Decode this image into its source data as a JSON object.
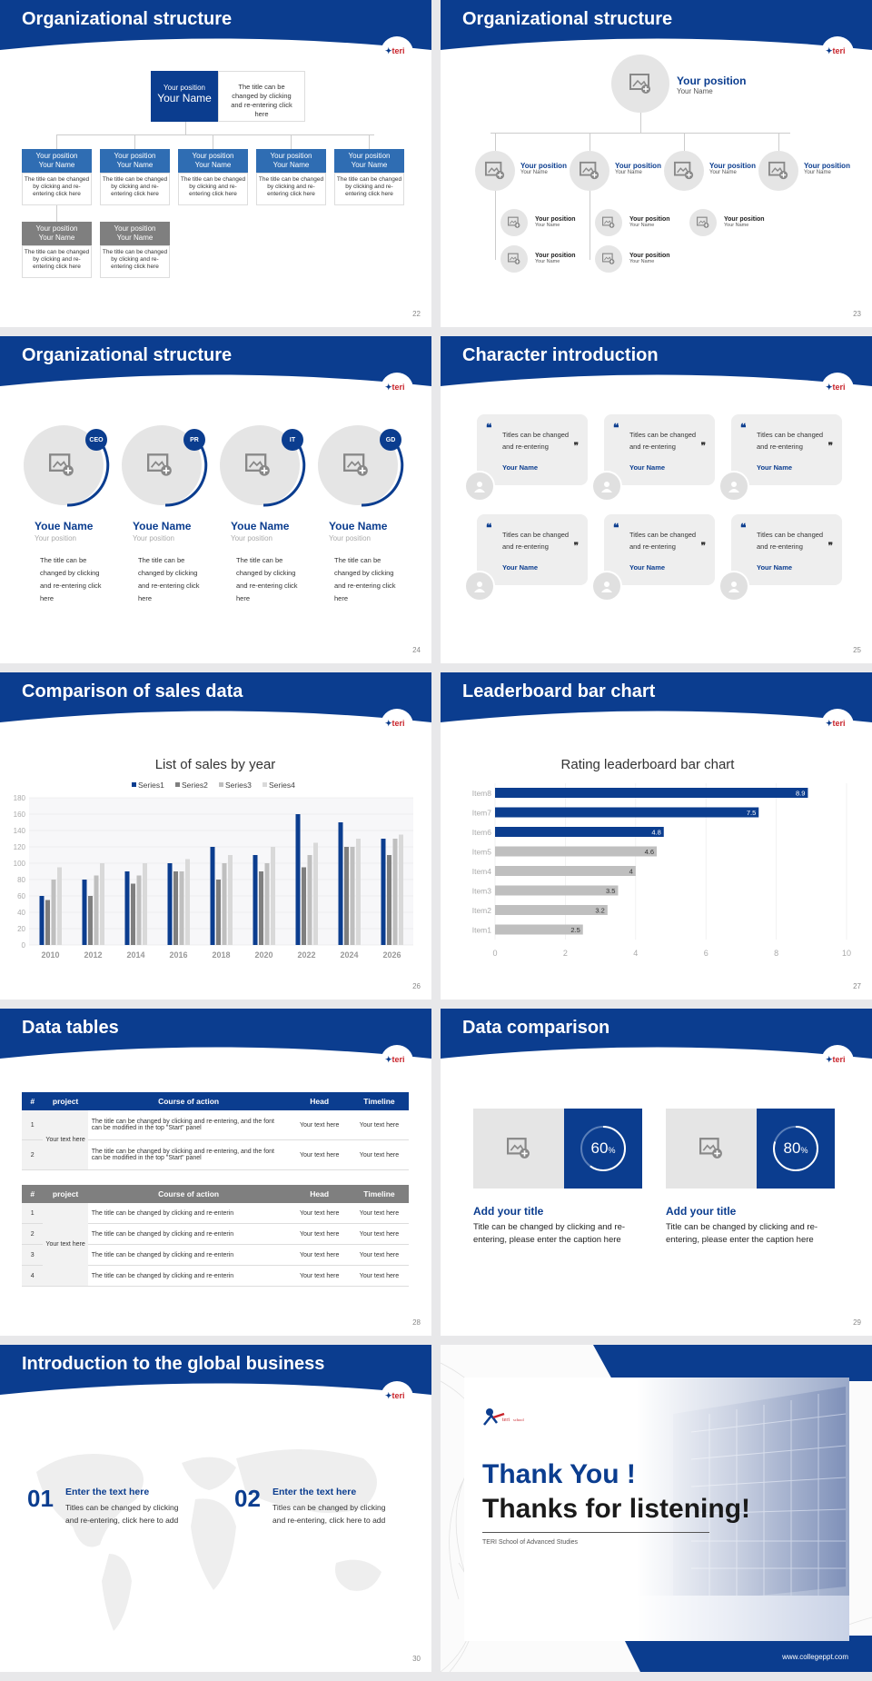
{
  "colors": {
    "primary": "#0b3d8f",
    "mid_blue": "#2f6db3",
    "gray": "#7f7f7f",
    "light_gray": "#e5e5e5"
  },
  "slides": {
    "s22": {
      "title": "Organizational structure",
      "page": "22",
      "top": {
        "position": "Your position",
        "name": "Your Name",
        "desc": "The title can be changed by clicking and re-entering click here"
      },
      "boxes": [
        {
          "position": "Your position",
          "name": "Your Name",
          "desc": "The title can be changed by clicking and re-entering click here"
        },
        {
          "position": "Your position",
          "name": "Your Name",
          "desc": "The title can be changed by clicking and re-entering click here"
        },
        {
          "position": "Your position",
          "name": "Your Name",
          "desc": "The title can be changed by clicking and re-entering click here"
        },
        {
          "position": "Your position",
          "name": "Your Name",
          "desc": "The title can be changed by clicking and re-entering click here"
        },
        {
          "position": "Your position",
          "name": "Your Name",
          "desc": "The title can be changed by clicking and re-entering click here"
        },
        {
          "position": "Your position",
          "name": "Your Name",
          "desc": "The title can be changed by clicking and re-entering click here"
        },
        {
          "position": "Your position",
          "name": "Your Name",
          "desc": "The title can be changed by clicking and re-entering click here"
        }
      ]
    },
    "s23": {
      "title": "Organizational structure",
      "page": "23",
      "top": {
        "position": "Your position",
        "name": "Your Name"
      },
      "level2": [
        {
          "position": "Your position",
          "name": "Your Name"
        },
        {
          "position": "Your position",
          "name": "Your Name"
        },
        {
          "position": "Your position",
          "name": "Your Name"
        },
        {
          "position": "Your position",
          "name": "Your Name"
        }
      ],
      "level3": [
        {
          "position": "Your position",
          "name": "Your Name"
        },
        {
          "position": "Your position",
          "name": "Your Name"
        },
        {
          "position": "Your position",
          "name": "Your Name"
        },
        {
          "position": "Your position",
          "name": "Your Name"
        },
        {
          "position": "Your position",
          "name": "Your Name"
        }
      ]
    },
    "s24": {
      "title": "Organizational structure",
      "page": "24",
      "people": [
        {
          "badge": "CEO",
          "name": "Youe Name",
          "position": "Your position",
          "desc": "The title can be changed by clicking and re-entering click here"
        },
        {
          "badge": "PR",
          "name": "Youe Name",
          "position": "Your position",
          "desc": "The title can be changed by clicking and re-entering click here"
        },
        {
          "badge": "IT",
          "name": "Youe Name",
          "position": "Your position",
          "desc": "The title can be changed by clicking and re-entering click here"
        },
        {
          "badge": "GD",
          "name": "Youe Name",
          "position": "Your position",
          "desc": "The title can be changed by clicking and re-entering click here"
        }
      ]
    },
    "s25": {
      "title": "Character introduction",
      "page": "25",
      "cards": [
        {
          "text": "Titles can be changed and re-entering",
          "name": "Your Name"
        },
        {
          "text": "Titles can be changed and re-entering",
          "name": "Your Name"
        },
        {
          "text": "Titles can be changed and re-entering",
          "name": "Your Name"
        },
        {
          "text": "Titles can be changed and re-entering",
          "name": "Your Name"
        },
        {
          "text": "Titles can be changed and re-entering",
          "name": "Your Name"
        },
        {
          "text": "Titles can be changed and re-entering",
          "name": "Your Name"
        }
      ]
    },
    "s26": {
      "title": "Comparison of sales data",
      "page": "26"
    },
    "s27": {
      "title": "Leaderboard bar chart",
      "page": "27"
    },
    "s28": {
      "title": "Data tables",
      "page": "28",
      "table1": {
        "headers": [
          "#",
          "project",
          "Course of action",
          "Head",
          "Timeline"
        ],
        "project": "Your text here",
        "rows": [
          {
            "num": "1",
            "action": "The title can be changed by clicking and re-entering, and the font can be modified in the top \"Start\" panel",
            "head": "Your text here",
            "timeline": "Your text here"
          },
          {
            "num": "2",
            "action": "The title can be changed by clicking and re-entering, and the font can be modified in the top \"Start\" panel",
            "head": "Your text here",
            "timeline": "Your text here"
          }
        ]
      },
      "table2": {
        "headers": [
          "#",
          "project",
          "Course of action",
          "Head",
          "Timeline"
        ],
        "project": "Your text here",
        "rows": [
          {
            "num": "1",
            "action": "The title can be changed by clicking and re-enterin",
            "head": "Your text here",
            "timeline": "Your text here"
          },
          {
            "num": "2",
            "action": "The title can be changed by clicking and re-enterin",
            "head": "Your text here",
            "timeline": "Your text here"
          },
          {
            "num": "3",
            "action": "The title can be changed by clicking and re-enterin",
            "head": "Your text here",
            "timeline": "Your text here"
          },
          {
            "num": "4",
            "action": "The title can be changed by clicking and re-enterin",
            "head": "Your text here",
            "timeline": "Your text here"
          }
        ]
      }
    },
    "s29": {
      "title": "Data comparison",
      "page": "29",
      "items": [
        {
          "percent": 60,
          "percent_label": "60",
          "unit": "%",
          "title": "Add your title",
          "caption": "Title can be changed by clicking and re-entering, please enter the caption here"
        },
        {
          "percent": 80,
          "percent_label": "80",
          "unit": "%",
          "title": "Add your title",
          "caption": "Title can be changed by clicking and re-entering, please enter the caption here"
        }
      ]
    },
    "s30": {
      "title": "Introduction to the global business",
      "page": "30",
      "items": [
        {
          "num": "01",
          "heading": "Enter the text here",
          "text": "Titles can be changed by clicking and re-entering, click here to add"
        },
        {
          "num": "02",
          "heading": "Enter the text here",
          "text": "Titles can be changed by clicking and re-entering, click here to add"
        }
      ]
    },
    "s31": {
      "line1": "Thank You !",
      "line2": "Thanks for listening!",
      "subtitle": "TERI School of Advanced Studies",
      "url": "www.collegeppt.com",
      "logo_text": "teri school of advanced studies"
    }
  },
  "chart_data": [
    {
      "type": "bar",
      "title": "List of sales by year",
      "categories": [
        "2010",
        "2012",
        "2014",
        "2016",
        "2018",
        "2020",
        "2022",
        "2024",
        "2026"
      ],
      "series": [
        {
          "name": "Series1",
          "color": "#0b3d8f",
          "values": [
            60,
            80,
            90,
            100,
            120,
            110,
            160,
            150,
            130
          ]
        },
        {
          "name": "Series2",
          "color": "#7f7f7f",
          "values": [
            55,
            60,
            75,
            90,
            80,
            90,
            95,
            120,
            110
          ]
        },
        {
          "name": "Series3",
          "color": "#bfbfbf",
          "values": [
            80,
            85,
            85,
            90,
            100,
            100,
            110,
            120,
            130
          ]
        },
        {
          "name": "Series4",
          "color": "#d9d9d9",
          "values": [
            95,
            100,
            100,
            105,
            110,
            120,
            125,
            130,
            135
          ]
        }
      ],
      "ylim": [
        0,
        180
      ],
      "yticks": [
        "0",
        "20",
        "40",
        "60",
        "80",
        "100",
        "120",
        "140",
        "160",
        "180"
      ],
      "legend": "top"
    },
    {
      "type": "bar",
      "orientation": "horizontal",
      "title": "Rating leaderboard bar chart",
      "categories": [
        "Item8",
        "Item7",
        "Item6",
        "Item5",
        "Item4",
        "Item3",
        "Item2",
        "Item1"
      ],
      "values": [
        8.9,
        7.5,
        4.8,
        4.6,
        4,
        3.5,
        3.2,
        2.5
      ],
      "labels": [
        "8.9",
        "7.5",
        "4.8",
        "4.6",
        "4",
        "3.5",
        "3.2",
        "2.5"
      ],
      "colors": [
        "#0b3d8f",
        "#0b3d8f",
        "#0b3d8f",
        "#bfbfbf",
        "#bfbfbf",
        "#bfbfbf",
        "#bfbfbf",
        "#bfbfbf"
      ],
      "xlim": [
        0,
        10
      ],
      "xticks": [
        "0",
        "2",
        "4",
        "6",
        "8",
        "10"
      ]
    }
  ]
}
